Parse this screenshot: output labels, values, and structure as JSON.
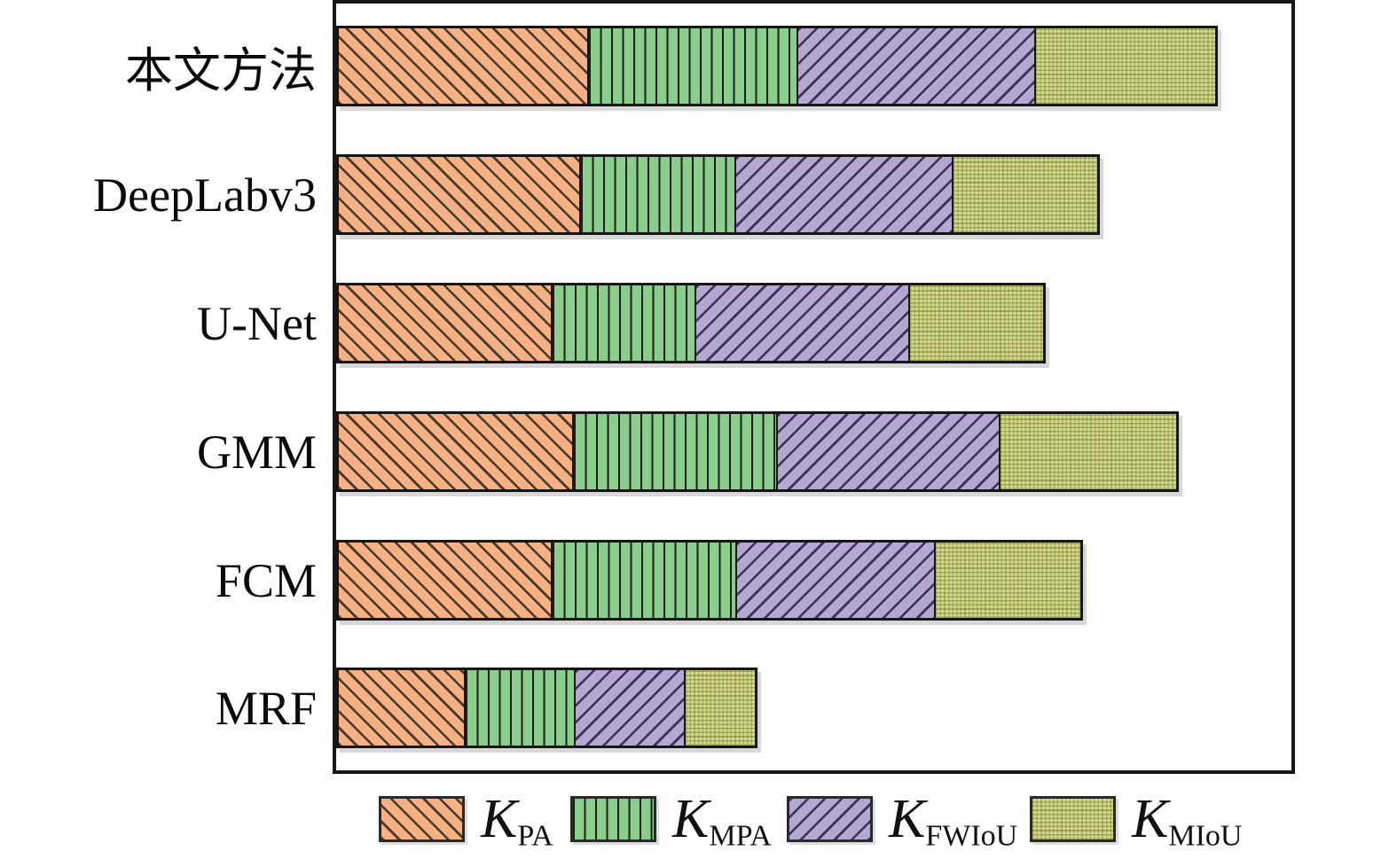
{
  "chart_data": {
    "type": "bar",
    "orientation": "horizontal",
    "stacked": true,
    "title": "",
    "xlabel": "",
    "ylabel": "",
    "axis_note": "no gridlines, tick marks or numeric axis labels are visible; segment values are estimated lengths expressed as percent of the plot-area width",
    "categories": [
      "本文方法",
      "DeepLabv3",
      "U-Net",
      "GMM",
      "FCM",
      "MRF"
    ],
    "series": [
      {
        "name": "K_PA",
        "values": [
          26.2,
          25.3,
          22.4,
          24.6,
          22.4,
          13.3
        ]
      },
      {
        "name": "K_MPA",
        "values": [
          22.0,
          16.4,
          15.1,
          21.5,
          19.4,
          11.6
        ]
      },
      {
        "name": "K_FWIoU",
        "values": [
          25.0,
          22.9,
          22.6,
          23.4,
          21.0,
          11.7
        ]
      },
      {
        "name": "K_MIoU",
        "values": [
          19.1,
          15.3,
          14.2,
          18.7,
          15.4,
          7.5
        ]
      }
    ],
    "bar_totals_percent_of_axis": [
      92.3,
      79.9,
      74.3,
      88.2,
      78.2,
      44.1
    ],
    "legend_position": "bottom",
    "grid": false
  },
  "legend": {
    "items": [
      {
        "series": "K_PA",
        "symbol": "K",
        "subscript": "PA"
      },
      {
        "series": "K_MPA",
        "symbol": "K",
        "subscript": "MPA"
      },
      {
        "series": "K_FWIoU",
        "symbol": "K",
        "subscript": "FWIoU"
      },
      {
        "series": "K_MIoU",
        "symbol": "K",
        "subscript": "MIoU"
      }
    ]
  },
  "colors": {
    "kpa_fill": "#F5B183",
    "kpa_hatch": "#463829",
    "kmpa_fill": "#8BCE8B",
    "kmpa_hatch": "#1D1D1D",
    "kfwiou_fill": "#B5A7D0",
    "kfwiou_hatch": "#38305A",
    "kmiou_fill": "#D7DB8F",
    "kmiou_hatch": "#828A3C",
    "frame": "#161616",
    "text": "#0A0A0A",
    "background": "#FFFFFF"
  },
  "patterns": {
    "K_PA": "backslash-diagonal-hatch",
    "K_MPA": "vertical-line-hatch",
    "K_FWIoU": "forward-diagonal-hatch",
    "K_MIoU": "fine-dot-weave"
  }
}
